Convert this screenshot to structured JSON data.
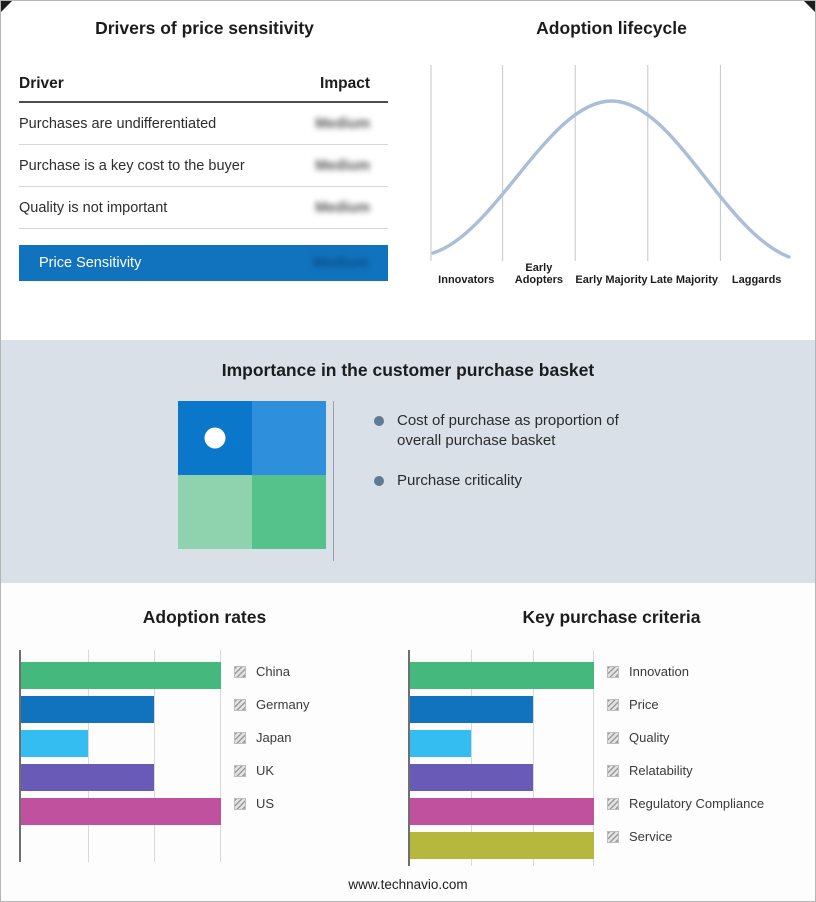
{
  "page": {
    "footer_url": "www.technavio.com"
  },
  "drivers": {
    "title": "Drivers of price sensitivity",
    "columns": {
      "driver": "Driver",
      "impact": "Impact"
    },
    "rows": [
      {
        "label": "Purchases are undifferentiated",
        "impact": "Medium"
      },
      {
        "label": "Purchase is a key cost to the buyer",
        "impact": "Medium"
      },
      {
        "label": "Quality is not important",
        "impact": "Medium"
      }
    ],
    "summary": {
      "label": "Price Sensitivity",
      "impact": "Medium"
    },
    "impact_values_blurred": true
  },
  "basket": {
    "title": "Importance in the customer purchase basket",
    "bullets": [
      "Cost of purchase as proportion of overall purchase basket",
      "Purchase criticality"
    ]
  },
  "chart_data": [
    {
      "type": "line",
      "subtype": "bell-curve",
      "title": "Adoption lifecycle",
      "categories": [
        "Innovators",
        "Early Adopters",
        "Early Majority",
        "Late Majority",
        "Laggards"
      ],
      "values": [
        0.08,
        0.55,
        1.0,
        0.55,
        0.08
      ],
      "peak_category": "Early Majority",
      "grid": true,
      "line_color": "#a9bed8"
    },
    {
      "type": "bar",
      "orientation": "horizontal",
      "title": "Adoption rates",
      "categories": [
        "China",
        "Germany",
        "Japan",
        "UK",
        "US"
      ],
      "values": [
        3,
        2,
        1,
        2,
        3
      ],
      "xlim": [
        0,
        3
      ],
      "colors": [
        "#45b87e",
        "#1173bd",
        "#33bdf0",
        "#6a5ab8",
        "#c0519f"
      ],
      "legend_position": "right",
      "grid": true
    },
    {
      "type": "bar",
      "orientation": "horizontal",
      "title": "Key purchase criteria",
      "categories": [
        "Innovation",
        "Price",
        "Quality",
        "Relatability",
        "Regulatory Compliance",
        "Service"
      ],
      "values": [
        3,
        2,
        1,
        2,
        3,
        3
      ],
      "xlim": [
        0,
        3
      ],
      "colors": [
        "#45b87e",
        "#1173bd",
        "#33bdf0",
        "#6a5ab8",
        "#c0519f",
        "#b6b83e"
      ],
      "legend_position": "right",
      "grid": true
    }
  ],
  "colors": {
    "primary_blue": "#1173bd",
    "band_background": "#d9e0e8",
    "curve_line": "#a9bed8",
    "quadrant": {
      "q1": "#0b77ca",
      "q2": "#2e8fdc",
      "q3": "#8fd2ae",
      "q4": "#55c28b"
    },
    "bullet": "#5f7a93"
  }
}
